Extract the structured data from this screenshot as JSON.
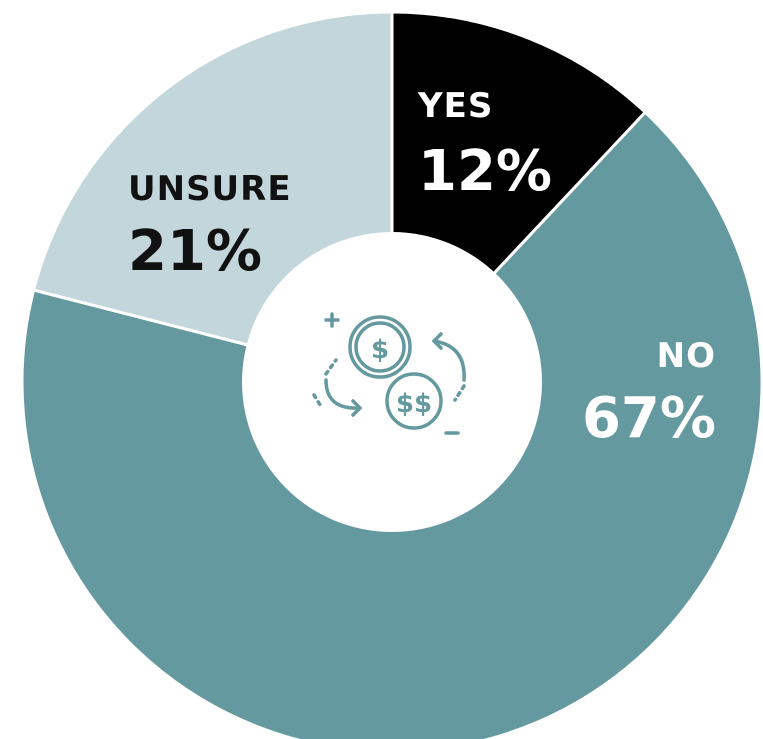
{
  "chart_data": {
    "type": "pie",
    "variant": "donut",
    "slices": [
      {
        "label": "YES",
        "value": 12,
        "display": "12%",
        "color": "#000000",
        "text_color": "#ffffff"
      },
      {
        "label": "NO",
        "value": 67,
        "display": "67%",
        "color": "#6599a0",
        "text_color": "#ffffff"
      },
      {
        "label": "UNSURE",
        "value": 21,
        "display": "21%",
        "color": "#c2d6db",
        "text_color": "#111111"
      }
    ],
    "start_angle_deg": 0,
    "direction": "clockwise",
    "center_icon": "money-exchange-icon",
    "icon_color": "#6599a0"
  }
}
